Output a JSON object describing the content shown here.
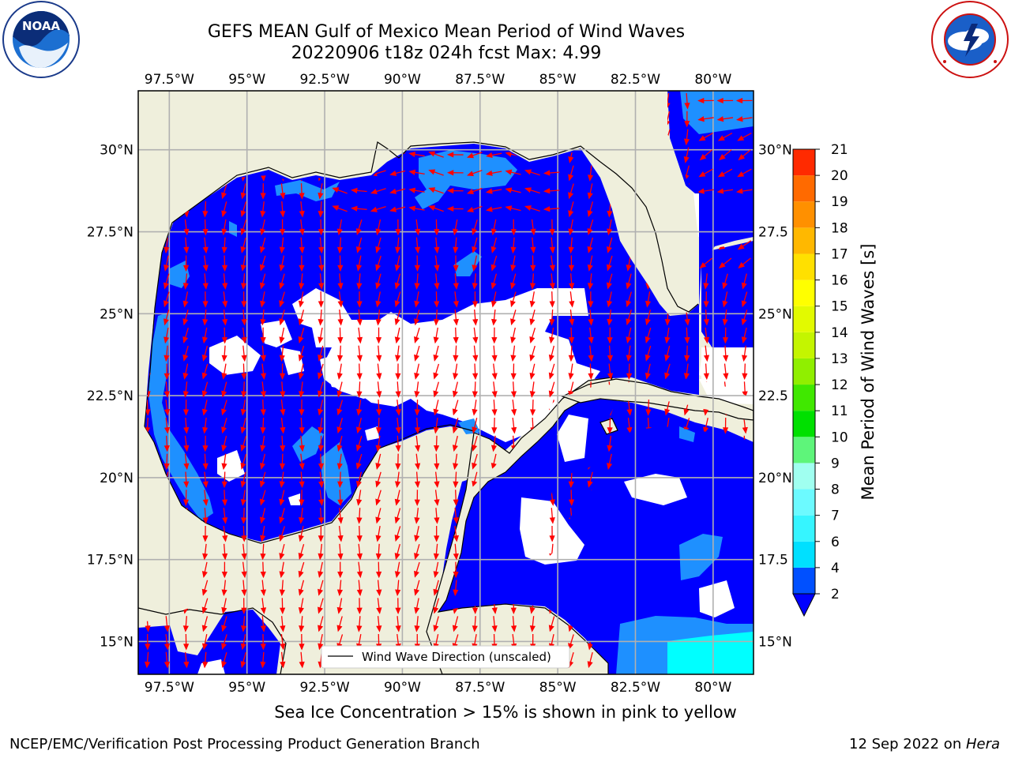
{
  "header": {
    "title_line1": "GEFS MEAN Gulf of Mexico Mean Period of Wind Waves",
    "title_line2": "20220906 t18z 024h fcst   Max: 4.99",
    "left_logo_icon": "noaa-logo-icon",
    "right_logo_icon": "national-weather-service-logo-icon"
  },
  "footer": {
    "sea_ice_note": "Sea Ice Concentration > 15% is shown in pink to yellow",
    "producer": "NCEP/EMC/Verification Post Processing Product Generation Branch",
    "date": "12 Sep 2022 on ",
    "machine": "Hera"
  },
  "legend": {
    "label": "Wind Wave Direction (unscaled)"
  },
  "chart_data": {
    "type": "heatmap",
    "title": "GEFS MEAN Gulf of Mexico Mean Period of Wind Waves",
    "subtitle": "20220906 t18z 024h fcst   Max: 4.99",
    "max_value": 4.99,
    "xlim": [
      -98.5,
      -78.7
    ],
    "ylim": [
      14.0,
      31.8
    ],
    "x_ticks": [
      -97.5,
      -95,
      -92.5,
      -90,
      -87.5,
      -85,
      -82.5,
      -80
    ],
    "x_tick_labels": [
      "97.5°W",
      "95°W",
      "92.5°W",
      "90°W",
      "87.5°W",
      "85°W",
      "82.5°W",
      "80°W"
    ],
    "y_ticks": [
      15,
      17.5,
      20,
      22.5,
      25,
      27.5,
      30
    ],
    "y_tick_labels_left": [
      "15°N",
      "17.5°N",
      "20°N",
      "22.5°N",
      "25°N",
      "27.5°N",
      "30°N"
    ],
    "y_tick_labels_right": [
      "15°N",
      "17.5",
      "20°N",
      "22.5",
      "25°N",
      "27.5",
      "30°N"
    ],
    "grid": true,
    "colorbar": {
      "label": "Mean Period of Wind Waves [s]",
      "levels": [
        2,
        4,
        6,
        7,
        8,
        9,
        10,
        11,
        12,
        13,
        14,
        15,
        16,
        17,
        18,
        19,
        20,
        21
      ],
      "tick_labels": [
        "2",
        "4",
        "6",
        "7",
        "8",
        "9",
        "10",
        "11",
        "12",
        "13",
        "14",
        "15",
        "16",
        "17",
        "18",
        "19",
        "20",
        "21"
      ],
      "colors": [
        "#0050ff",
        "#00e0ff",
        "#36f5ff",
        "#6cfaff",
        "#a0fff0",
        "#5ef57a",
        "#00e000",
        "#40e800",
        "#90ef00",
        "#c4f500",
        "#e2fa00",
        "#ffff00",
        "#ffe000",
        "#ffb800",
        "#ff9000",
        "#ff6a00",
        "#ff2a00"
      ],
      "extend": "min",
      "extend_color": "#0000ff"
    },
    "field_colors": {
      "below_2s": "#0000ff",
      "2_to_4s": "#1e90ff",
      "4_to_6s": "#00ffff",
      "land": "#efefdc",
      "arrows": "#ff0000"
    },
    "series": [
      {
        "name": "Wind Wave Direction (unscaled)",
        "type": "vector-arrows"
      }
    ]
  }
}
